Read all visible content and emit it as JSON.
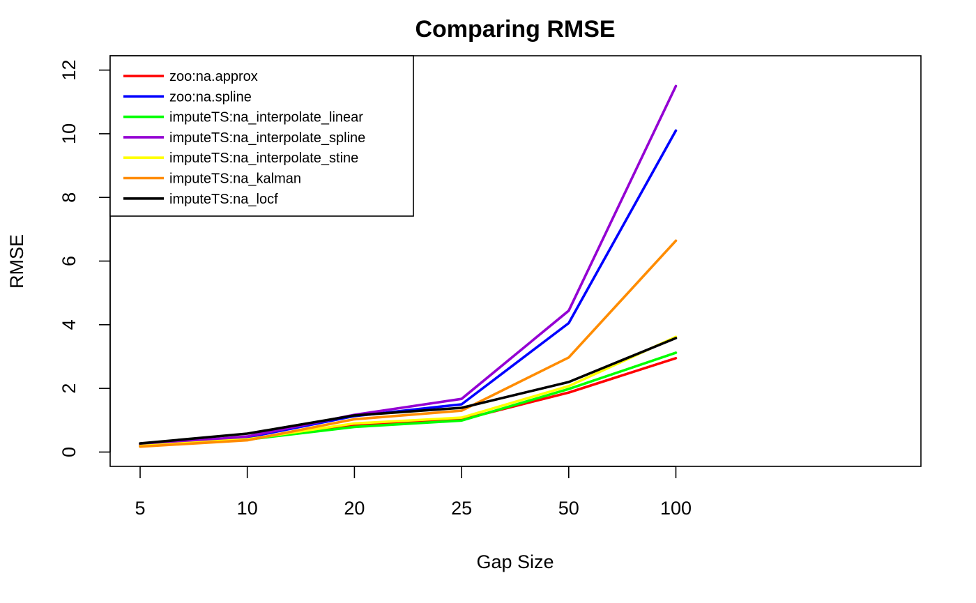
{
  "chart_data": {
    "type": "line",
    "title": "Comparing RMSE",
    "xlabel": "Gap Size",
    "ylabel": "RMSE",
    "categories": [
      "5",
      "10",
      "20",
      "25",
      "50",
      "100"
    ],
    "ylim": [
      -0.45,
      12.45
    ],
    "yticks": [
      0,
      2,
      4,
      6,
      8,
      10,
      12
    ],
    "grid": false,
    "legend_position": "top-left",
    "series": [
      {
        "name": "zoo:na.approx",
        "color": "#ff0000",
        "values": [
          0.19,
          0.39,
          0.85,
          1.02,
          1.87,
          2.95
        ]
      },
      {
        "name": "zoo:na.spline",
        "color": "#0000ff",
        "values": [
          0.22,
          0.46,
          1.13,
          1.5,
          4.05,
          10.1
        ]
      },
      {
        "name": "imputeTS:na_interpolate_linear",
        "color": "#00ff00",
        "values": [
          0.2,
          0.39,
          0.79,
          0.99,
          1.98,
          3.12
        ]
      },
      {
        "name": "imputeTS:na_interpolate_spline",
        "color": "#9400d3",
        "values": [
          0.22,
          0.49,
          1.17,
          1.67,
          4.44,
          11.5
        ]
      },
      {
        "name": "imputeTS:na_interpolate_stine",
        "color": "#ffff00",
        "values": [
          0.19,
          0.4,
          0.9,
          1.08,
          2.07,
          3.62
        ]
      },
      {
        "name": "imputeTS:na_kalman",
        "color": "#ff8c00",
        "values": [
          0.17,
          0.37,
          1.03,
          1.3,
          2.97,
          6.64
        ]
      },
      {
        "name": "imputeTS:na_locf",
        "color": "#000000",
        "values": [
          0.27,
          0.58,
          1.15,
          1.39,
          2.2,
          3.58
        ]
      }
    ]
  }
}
